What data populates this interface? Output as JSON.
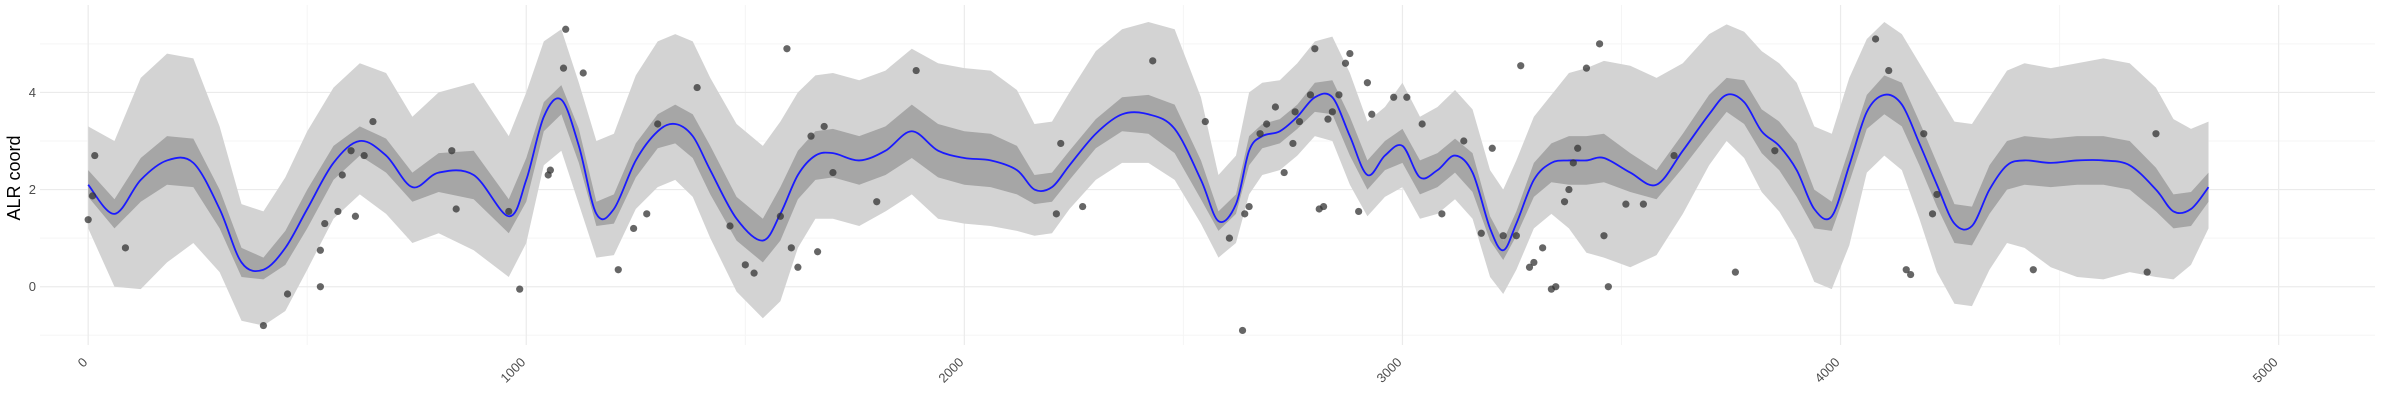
{
  "chart_data": {
    "type": "line",
    "title": "",
    "xlabel": "",
    "ylabel": "ALR coord",
    "xlim": [
      -110,
      5220
    ],
    "ylim": [
      -1.2,
      5.8
    ],
    "x_ticks": [
      0,
      1000,
      2000,
      3000,
      4000,
      5000
    ],
    "y_ticks": [
      0,
      2,
      4
    ],
    "grid": true,
    "colors": {
      "line": "#1a1aff",
      "inner_band": "#a6a6a6",
      "outer_band": "#d3d3d3",
      "points": "#333333",
      "grid_major": "#ebebeb",
      "grid_minor": "#f5f5f5"
    },
    "curve": {
      "x": [
        0,
        60,
        120,
        180,
        240,
        300,
        350,
        400,
        450,
        500,
        560,
        620,
        680,
        740,
        800,
        880,
        960,
        1000,
        1040,
        1080,
        1120,
        1160,
        1200,
        1250,
        1300,
        1340,
        1380,
        1420,
        1480,
        1540,
        1580,
        1620,
        1660,
        1700,
        1760,
        1820,
        1880,
        1940,
        2000,
        2060,
        2120,
        2160,
        2200,
        2240,
        2300,
        2360,
        2420,
        2480,
        2540,
        2580,
        2620,
        2650,
        2680,
        2720,
        2760,
        2800,
        2840,
        2880,
        2920,
        2960,
        3000,
        3040,
        3080,
        3120,
        3160,
        3200,
        3230,
        3260,
        3300,
        3340,
        3380,
        3420,
        3460,
        3520,
        3580,
        3640,
        3700,
        3740,
        3780,
        3820,
        3860,
        3900,
        3940,
        3980,
        4020,
        4060,
        4100,
        4140,
        4180,
        4220,
        4260,
        4300,
        4340,
        4380,
        4420,
        4480,
        4540,
        4600,
        4660,
        4720,
        4760,
        4800,
        4840
      ],
      "y": [
        2.1,
        1.5,
        2.2,
        2.6,
        2.55,
        1.6,
        0.5,
        0.35,
        0.8,
        1.6,
        2.55,
        3.0,
        2.7,
        2.05,
        2.35,
        2.3,
        1.45,
        2.2,
        3.5,
        3.85,
        2.9,
        1.5,
        1.6,
        2.6,
        3.2,
        3.35,
        3.1,
        2.4,
        1.4,
        0.95,
        1.5,
        2.3,
        2.7,
        2.75,
        2.6,
        2.8,
        3.2,
        2.8,
        2.65,
        2.6,
        2.4,
        2.0,
        2.05,
        2.5,
        3.15,
        3.55,
        3.55,
        3.25,
        2.2,
        1.35,
        1.7,
        2.8,
        3.1,
        3.2,
        3.5,
        3.9,
        3.9,
        3.1,
        2.3,
        2.7,
        2.9,
        2.25,
        2.4,
        2.7,
        2.35,
        1.2,
        0.75,
        1.3,
        2.2,
        2.55,
        2.6,
        2.6,
        2.65,
        2.35,
        2.1,
        2.8,
        3.55,
        3.95,
        3.8,
        3.2,
        2.9,
        2.4,
        1.6,
        1.45,
        2.5,
        3.6,
        3.95,
        3.75,
        2.95,
        2.1,
        1.3,
        1.25,
        2.0,
        2.5,
        2.6,
        2.55,
        2.6,
        2.6,
        2.5,
        2.0,
        1.55,
        1.6,
        2.05
      ]
    },
    "inner_band": {
      "lower": [
        1.85,
        1.2,
        1.75,
        2.1,
        2.05,
        1.2,
        0.2,
        0.15,
        0.45,
        1.2,
        2.2,
        2.7,
        2.35,
        1.75,
        1.95,
        1.8,
        1.1,
        1.75,
        3.2,
        3.55,
        2.55,
        1.25,
        1.3,
        2.25,
        2.85,
        2.95,
        2.65,
        1.9,
        0.95,
        0.5,
        0.95,
        1.8,
        2.2,
        2.25,
        2.1,
        2.3,
        2.65,
        2.25,
        2.1,
        2.05,
        1.9,
        1.7,
        1.75,
        2.2,
        2.85,
        3.2,
        3.15,
        2.75,
        1.8,
        1.15,
        1.5,
        2.5,
        2.85,
        2.95,
        3.25,
        3.6,
        3.55,
        2.7,
        2.0,
        2.4,
        2.55,
        1.9,
        2.05,
        2.35,
        1.95,
        0.95,
        0.55,
        1.05,
        1.85,
        2.15,
        2.1,
        2.1,
        2.15,
        1.95,
        1.8,
        2.45,
        3.15,
        3.6,
        3.35,
        2.75,
        2.4,
        1.85,
        1.2,
        1.15,
        2.15,
        3.25,
        3.55,
        3.3,
        2.5,
        1.65,
        0.9,
        0.85,
        1.5,
        2.0,
        2.1,
        2.05,
        2.1,
        2.1,
        2.0,
        1.55,
        1.2,
        1.25,
        1.75
      ],
      "upper": [
        2.4,
        1.8,
        2.65,
        3.1,
        3.05,
        2.0,
        0.8,
        0.6,
        1.15,
        2.0,
        2.9,
        3.3,
        3.05,
        2.35,
        2.75,
        2.8,
        1.8,
        2.65,
        3.8,
        4.15,
        3.25,
        1.75,
        1.9,
        2.95,
        3.55,
        3.75,
        3.55,
        2.9,
        1.85,
        1.4,
        2.05,
        2.8,
        3.2,
        3.25,
        3.1,
        3.3,
        3.75,
        3.35,
        3.2,
        3.15,
        2.9,
        2.3,
        2.35,
        2.8,
        3.45,
        3.9,
        3.95,
        3.75,
        2.6,
        1.55,
        1.9,
        3.1,
        3.35,
        3.45,
        3.75,
        4.2,
        4.25,
        3.5,
        2.6,
        3.0,
        3.25,
        2.6,
        2.75,
        3.05,
        2.75,
        1.45,
        0.95,
        1.55,
        2.55,
        2.95,
        3.1,
        3.1,
        3.15,
        2.75,
        2.4,
        3.15,
        3.95,
        4.3,
        4.25,
        3.65,
        3.4,
        2.95,
        2.0,
        1.75,
        2.85,
        3.95,
        4.35,
        4.2,
        3.4,
        2.55,
        1.7,
        1.65,
        2.5,
        3.0,
        3.1,
        3.05,
        3.1,
        3.1,
        3.0,
        2.45,
        1.9,
        1.95,
        2.35
      ]
    },
    "outer_band": {
      "lower": [
        1.2,
        0.0,
        -0.05,
        0.5,
        0.9,
        0.3,
        -0.7,
        -0.8,
        -0.5,
        0.35,
        1.4,
        1.9,
        1.5,
        0.9,
        1.1,
        0.75,
        0.2,
        0.9,
        2.5,
        2.8,
        1.7,
        0.6,
        0.65,
        1.6,
        2.05,
        2.2,
        1.85,
        1.0,
        -0.1,
        -0.65,
        -0.3,
        0.8,
        1.4,
        1.4,
        1.25,
        1.55,
        1.9,
        1.4,
        1.3,
        1.25,
        1.15,
        1.05,
        1.1,
        1.6,
        2.2,
        2.55,
        2.55,
        2.2,
        1.3,
        0.6,
        0.9,
        1.9,
        2.3,
        2.4,
        2.7,
        3.1,
        3.0,
        2.1,
        1.45,
        1.85,
        2.05,
        1.4,
        1.5,
        1.8,
        1.4,
        0.2,
        -0.15,
        0.35,
        1.2,
        1.5,
        1.2,
        0.7,
        0.6,
        0.4,
        0.65,
        1.5,
        2.5,
        3.0,
        2.65,
        1.95,
        1.55,
        0.95,
        0.1,
        -0.05,
        0.85,
        2.35,
        2.7,
        2.4,
        1.4,
        0.3,
        -0.35,
        -0.4,
        0.35,
        0.9,
        0.8,
        0.4,
        0.2,
        0.15,
        0.3,
        0.2,
        0.15,
        0.45,
        1.2
      ],
      "upper": [
        3.3,
        3.0,
        4.3,
        4.8,
        4.7,
        3.3,
        1.7,
        1.55,
        2.25,
        3.2,
        4.1,
        4.6,
        4.4,
        3.5,
        4.0,
        4.2,
        3.1,
        4.0,
        5.05,
        5.3,
        4.2,
        3.0,
        3.15,
        4.35,
        5.05,
        5.2,
        5.05,
        4.3,
        3.35,
        2.9,
        3.4,
        4.0,
        4.35,
        4.4,
        4.25,
        4.45,
        4.9,
        4.6,
        4.5,
        4.45,
        4.05,
        3.35,
        3.4,
        4.0,
        4.85,
        5.3,
        5.45,
        5.3,
        3.9,
        2.3,
        2.7,
        4.0,
        4.2,
        4.25,
        4.6,
        5.05,
        5.15,
        4.4,
        3.4,
        3.7,
        4.2,
        3.5,
        3.7,
        4.05,
        3.65,
        2.4,
        2.0,
        2.6,
        3.5,
        3.95,
        4.4,
        4.5,
        4.65,
        4.55,
        4.3,
        4.6,
        5.2,
        5.4,
        5.25,
        4.85,
        4.6,
        4.2,
        3.3,
        3.15,
        4.3,
        5.1,
        5.45,
        5.2,
        4.6,
        4.0,
        3.4,
        3.35,
        3.9,
        4.45,
        4.6,
        4.5,
        4.6,
        4.7,
        4.6,
        4.1,
        3.45,
        3.25,
        3.4
      ]
    },
    "points": {
      "x": [
        0,
        10,
        15,
        85,
        400,
        455,
        530,
        530,
        540,
        570,
        580,
        600,
        610,
        630,
        650,
        830,
        840,
        960,
        985,
        1050,
        1055,
        1085,
        1090,
        1130,
        1210,
        1245,
        1275,
        1300,
        1390,
        1465,
        1500,
        1520,
        1580,
        1595,
        1605,
        1620,
        1650,
        1665,
        1680,
        1700,
        1800,
        1890,
        2210,
        2220,
        2270,
        2430,
        2550,
        2605,
        2635,
        2640,
        2650,
        2675,
        2690,
        2710,
        2730,
        2750,
        2755,
        2765,
        2790,
        2800,
        2810,
        2820,
        2830,
        2840,
        2855,
        2870,
        2880,
        2900,
        2920,
        2930,
        2980,
        3010,
        3045,
        3090,
        3140,
        3180,
        3205,
        3230,
        3260,
        3270,
        3290,
        3300,
        3320,
        3340,
        3350,
        3370,
        3380,
        3390,
        3400,
        3420,
        3450,
        3460,
        3470,
        3510,
        3550,
        3620,
        3760,
        3850,
        4080,
        4110,
        4150,
        4160,
        4190,
        4210,
        4220,
        4440,
        4700,
        4720
      ],
      "y": [
        1.38,
        1.87,
        2.7,
        0.8,
        -0.8,
        -0.15,
        0.0,
        0.75,
        1.3,
        1.55,
        2.3,
        2.8,
        1.45,
        2.7,
        3.4,
        2.8,
        1.6,
        1.55,
        -0.05,
        2.3,
        2.4,
        4.5,
        5.3,
        4.4,
        0.35,
        1.2,
        1.5,
        3.35,
        4.1,
        1.25,
        0.45,
        0.28,
        1.45,
        4.9,
        0.8,
        0.4,
        3.1,
        0.72,
        3.3,
        2.35,
        1.75,
        4.45,
        1.5,
        2.95,
        1.65,
        4.65,
        3.4,
        1.0,
        -0.9,
        1.5,
        1.65,
        3.15,
        3.35,
        3.7,
        2.35,
        2.95,
        3.6,
        3.4,
        3.95,
        4.9,
        1.6,
        1.65,
        3.45,
        3.6,
        3.95,
        4.6,
        4.8,
        1.55,
        4.2,
        3.55,
        3.9,
        3.9,
        3.35,
        1.5,
        3.0,
        1.1,
        2.85,
        1.05,
        1.05,
        4.55,
        0.4,
        0.5,
        0.8,
        -0.05,
        0.0,
        1.75,
        2.0,
        2.55,
        2.85,
        4.5,
        5.0,
        1.05,
        0.0,
        1.7,
        1.7,
        2.7,
        0.3,
        2.8,
        5.1,
        4.45,
        0.35,
        0.25,
        3.15,
        1.5,
        1.9,
        0.35,
        0.3,
        3.15
      ]
    }
  }
}
